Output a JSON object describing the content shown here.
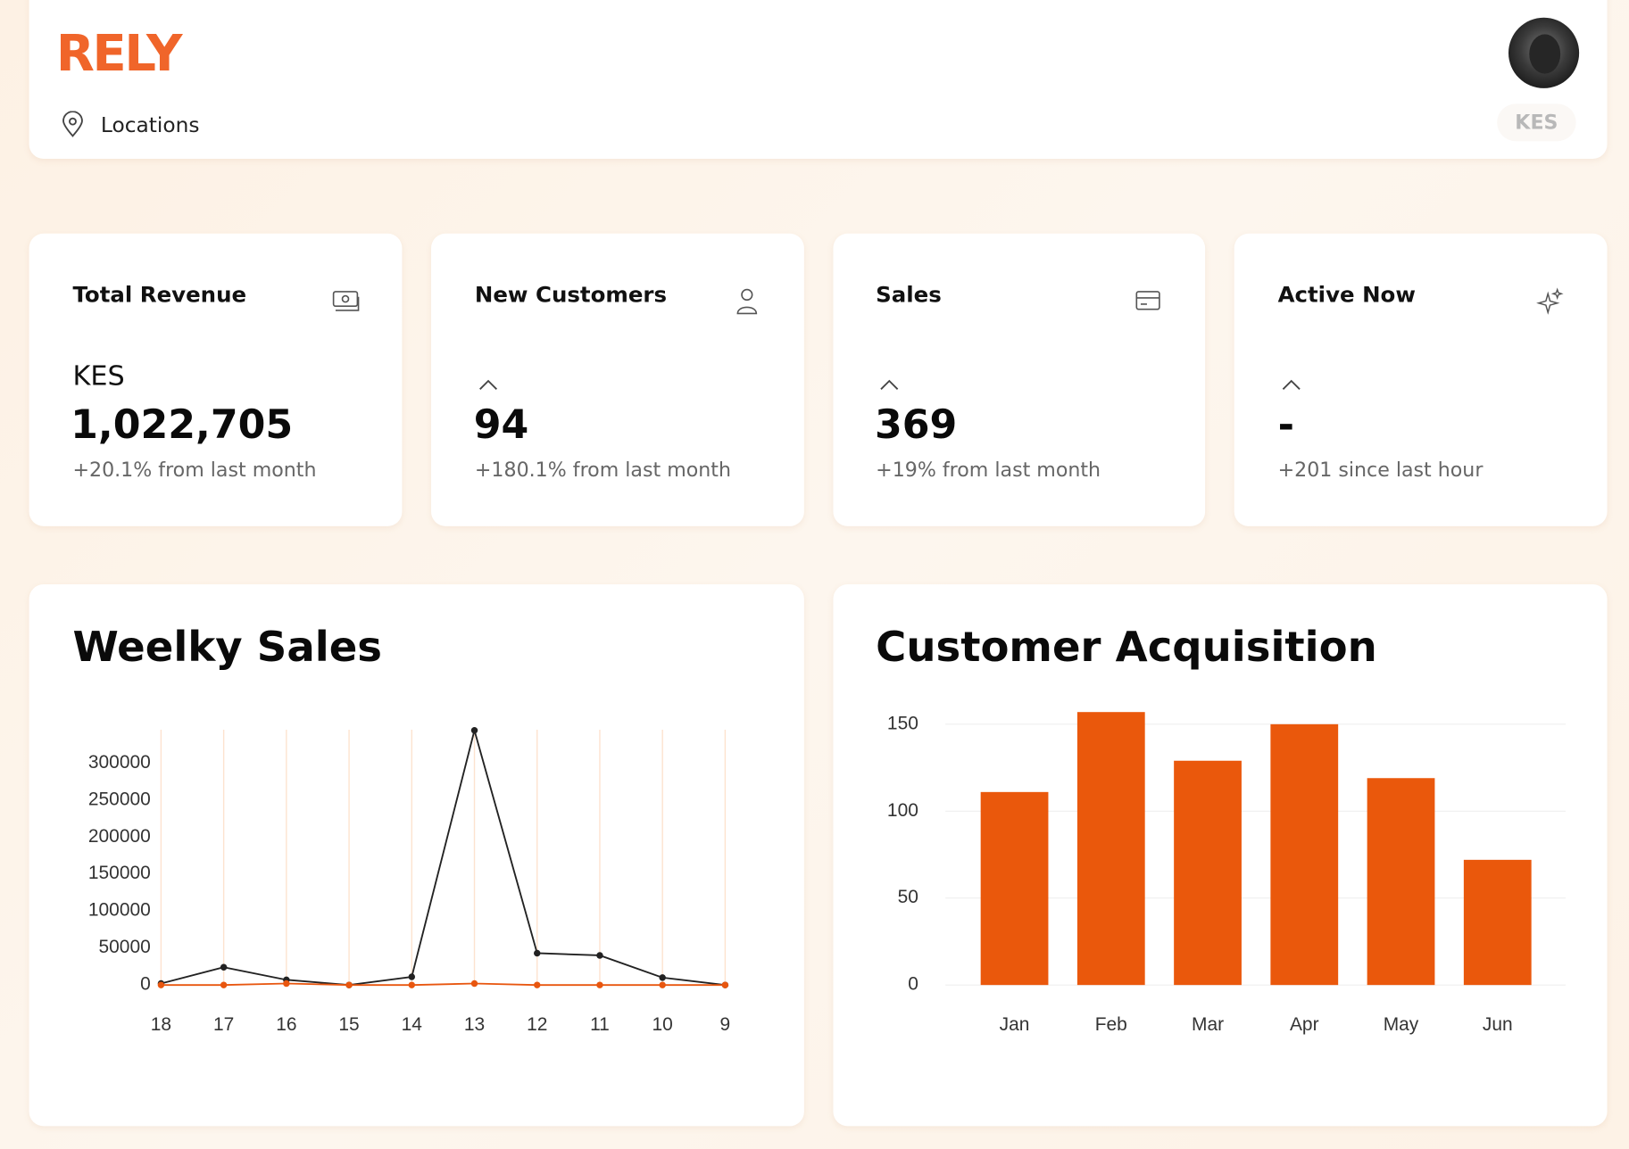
{
  "header": {
    "logo": "RELY",
    "location_label": "Locations",
    "currency": "KES"
  },
  "cards": [
    {
      "title": "Total Revenue",
      "currency": "KES",
      "value": "1,022,705",
      "change": "+20.1% from last month"
    },
    {
      "title": "New Customers",
      "value": 94,
      "change": "+180.1% from last month"
    },
    {
      "title": "Sales",
      "value": 369,
      "change": "+19% from last month"
    },
    {
      "title": "Active Now",
      "value": "-",
      "change": "+201 since last hour"
    }
  ],
  "chart_data": [
    {
      "type": "line",
      "title": "Weelky Sales",
      "categories": [
        "18",
        "17",
        "16",
        "15",
        "14",
        "13",
        "12",
        "11",
        "10",
        "9"
      ],
      "series": [
        {
          "color": "#222222",
          "values": [
            2000,
            24000,
            7000,
            0,
            11000,
            344000,
            43000,
            40000,
            10000,
            0
          ]
        },
        {
          "color": "#e8560f",
          "values": [
            0,
            0,
            2000,
            0,
            0,
            2000,
            0,
            0,
            0,
            0
          ]
        }
      ],
      "ylim": [
        0,
        345000
      ],
      "yticks": [
        0,
        50000,
        100000,
        150000,
        200000,
        250000,
        300000
      ],
      "grid": "x",
      "grid_color": "#fde3cf"
    },
    {
      "type": "bar",
      "title": "Customer Acquisition",
      "categories": [
        "Jan",
        "Feb",
        "Mar",
        "Apr",
        "May",
        "Jun"
      ],
      "values": [
        111,
        157,
        129,
        150,
        119,
        72
      ],
      "color": "#ea580c",
      "ylim": [
        0,
        160
      ],
      "yticks": [
        0,
        50,
        100,
        150
      ],
      "grid": "y",
      "grid_color": "#efefef"
    }
  ]
}
